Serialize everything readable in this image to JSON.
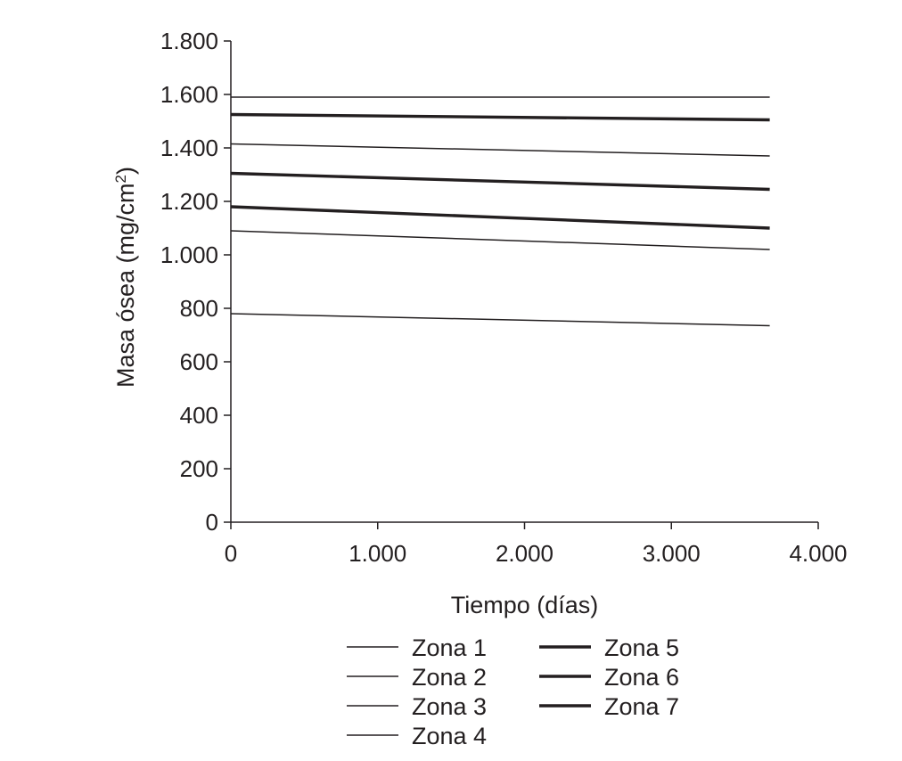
{
  "chart_data": {
    "type": "line",
    "xlabel": "Tiempo (días)",
    "ylabel": "Masa ósea (mg/cm",
    "ylabel_sup": "2",
    "ylabel_close": ")",
    "xlim": [
      0,
      4000
    ],
    "ylim": [
      0,
      1800
    ],
    "x_ticks": [
      0,
      1000,
      2000,
      3000,
      4000
    ],
    "x_tick_labels": [
      "0",
      "1.000",
      "2.000",
      "3.000",
      "4.000"
    ],
    "y_ticks": [
      0,
      200,
      400,
      600,
      800,
      1000,
      1200,
      1400,
      1600,
      1800
    ],
    "y_tick_labels": [
      "0",
      "200",
      "400",
      "600",
      "800",
      "1.000",
      "1.200",
      "1.400",
      "1.600",
      "1.800"
    ],
    "grid": false,
    "legend_position": "bottom",
    "series": [
      {
        "name": "Zona 1",
        "weight": "thin",
        "x": [
          0,
          3670
        ],
        "values": [
          1590,
          1590
        ]
      },
      {
        "name": "Zona 2",
        "weight": "thin",
        "x": [
          0,
          3670
        ],
        "values": [
          1415,
          1370
        ]
      },
      {
        "name": "Zona 3",
        "weight": "thin",
        "x": [
          0,
          3670
        ],
        "values": [
          1090,
          1020
        ]
      },
      {
        "name": "Zona 4",
        "weight": "thin",
        "x": [
          0,
          3670
        ],
        "values": [
          780,
          735
        ]
      },
      {
        "name": "Zona 5",
        "weight": "thick",
        "x": [
          0,
          3670
        ],
        "values": [
          1525,
          1505
        ]
      },
      {
        "name": "Zona 6",
        "weight": "thick",
        "x": [
          0,
          3670
        ],
        "values": [
          1305,
          1245
        ]
      },
      {
        "name": "Zona 7",
        "weight": "thick",
        "x": [
          0,
          3670
        ],
        "values": [
          1180,
          1100
        ]
      }
    ],
    "line_color": "#231f20"
  }
}
